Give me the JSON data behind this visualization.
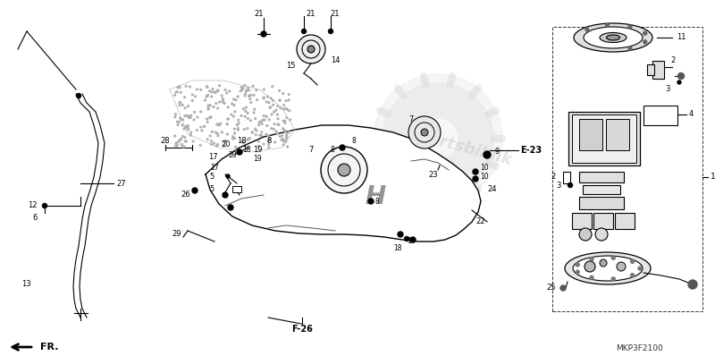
{
  "bg_color": "#ffffff",
  "fig_width": 8.0,
  "fig_height": 3.98,
  "dpi": 100,
  "watermark_text": "partsbiklik",
  "bottom_left_label": "FR.",
  "bottom_right_label": "MKP3F2100",
  "label_E23": "E-23",
  "label_F26": "F-26",
  "lc": "#000000",
  "lw": 0.8,
  "gear_color": "#d0d0d0",
  "wm_color": "#c8c8c8",
  "stipple_color": "#b0b0b0"
}
